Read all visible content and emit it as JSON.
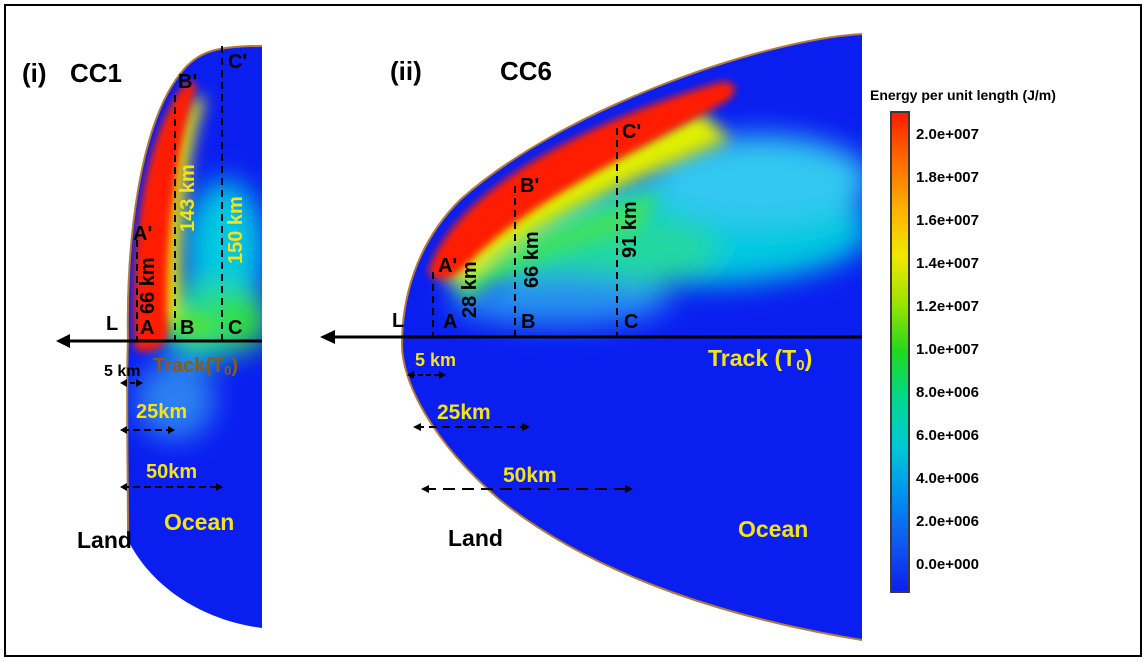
{
  "colors": {
    "min": "#0a1ef0",
    "max": "#ff1a00",
    "yellow_label": "#f4e21a",
    "track_label_left": "#8a5a16",
    "coast": "#b07a3a",
    "frame": "#000000"
  },
  "panel_i": {
    "title_num": "(i)",
    "title": "CC1",
    "sections": [
      {
        "lower": "A",
        "upper": "A'",
        "length": "66 km"
      },
      {
        "lower": "B",
        "upper": "B'",
        "length": "143 km"
      },
      {
        "lower": "C",
        "upper": "C'",
        "length": "150 km"
      }
    ],
    "landfall": "L",
    "track": "Track(T",
    "track_sub": "0",
    "track_close": ")",
    "distances": [
      "5 km",
      "25km",
      "50km"
    ],
    "land": "Land",
    "ocean": "Ocean"
  },
  "panel_ii": {
    "title_num": "(ii)",
    "title": "CC6",
    "sections": [
      {
        "lower": "A",
        "upper": "A'",
        "length": "28 km"
      },
      {
        "lower": "B",
        "upper": "B'",
        "length": "66 km"
      },
      {
        "lower": "C",
        "upper": "C'",
        "length": "91 km"
      }
    ],
    "landfall": "L",
    "track": "Track (T",
    "track_sub": "0",
    "track_close": ")",
    "distances": [
      "5 km",
      "25km",
      "50km"
    ],
    "land": "Land",
    "ocean": "Ocean"
  },
  "colorbar": {
    "title": "Energy per unit length (J/m)",
    "ticks": [
      "2.0e+007",
      "1.8e+007",
      "1.6e+007",
      "1.4e+007",
      "1.2e+007",
      "1.0e+007",
      "8.0e+006",
      "6.0e+006",
      "4.0e+006",
      "2.0e+006",
      "0.0e+000"
    ]
  }
}
